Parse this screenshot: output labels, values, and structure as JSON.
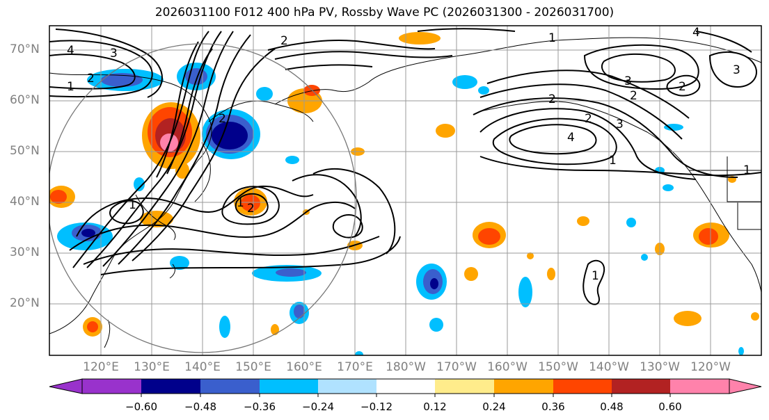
{
  "title": "2026031100 F012 400 hPa PV, Rossby Wave PC (2026031300 - 2026031700)",
  "latitude_labels": [
    "70°N",
    "60°N",
    "50°N",
    "40°N",
    "30°N",
    "20°N"
  ],
  "longitude_labels": [
    "120°E",
    "130°E",
    "140°E",
    "150°E",
    "160°E",
    "170°E",
    "180°W",
    "170°W",
    "160°W",
    "150°W",
    "140°W",
    "130°W",
    "120°W"
  ],
  "contour_labels": [
    "2",
    "4",
    "3",
    "2",
    "1",
    "2",
    "3",
    "4",
    "3",
    "2",
    "2",
    "3",
    "4",
    "1",
    "1",
    "2",
    "1",
    "1",
    "2",
    "1",
    "1",
    "2"
  ],
  "colorbar": {
    "tick_labels": [
      "−0.60",
      "−0.48",
      "−0.36",
      "−0.24",
      "−0.12",
      "0.12",
      "0.24",
      "0.36",
      "0.48",
      "0.60"
    ],
    "colors": [
      "#9932cc",
      "#00008b",
      "#3a5fcd",
      "#00bfff",
      "#b0e2ff",
      "#ffffff",
      "#ffec8b",
      "#ffa500",
      "#ff4500",
      "#b22222",
      "#ff82ab"
    ]
  }
}
